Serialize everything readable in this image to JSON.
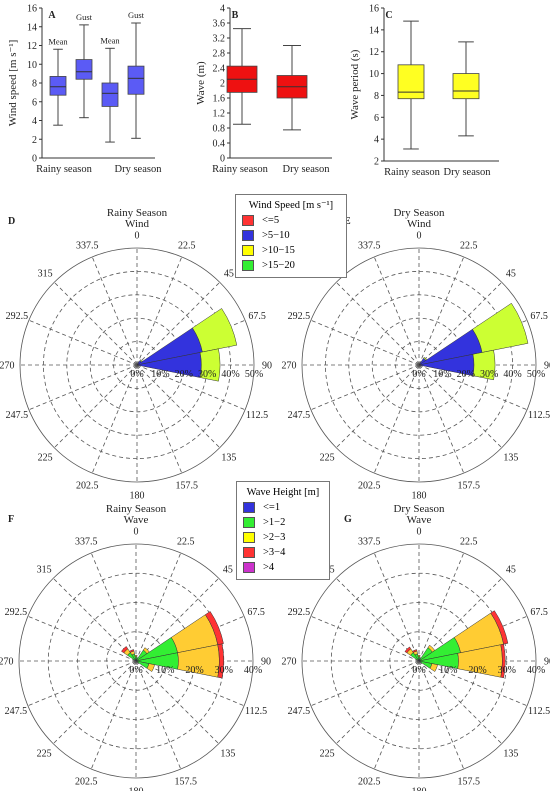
{
  "chart_data": [
    {
      "panel": "A",
      "type": "box",
      "ylabel": "Wind speed [m s⁻¹]",
      "ylim": [
        0,
        16
      ],
      "yticks": [
        0,
        2,
        4,
        6,
        8,
        10,
        12,
        14,
        16
      ],
      "groups": [
        "Rainy season",
        "Dry season"
      ],
      "box_labels": [
        "Mean",
        "Gust",
        "Mean",
        "Gust"
      ],
      "boxes": [
        {
          "group": "Rainy season",
          "label": "Mean",
          "min": 3.5,
          "q1": 6.7,
          "median": 7.6,
          "q3": 8.7,
          "max": 11.6
        },
        {
          "group": "Rainy season",
          "label": "Gust",
          "min": 4.3,
          "q1": 8.4,
          "median": 9.2,
          "q3": 10.5,
          "max": 14.2
        },
        {
          "group": "Dry season",
          "label": "Mean",
          "min": 1.7,
          "q1": 5.5,
          "median": 6.9,
          "q3": 8.0,
          "max": 11.7
        },
        {
          "group": "Dry season",
          "label": "Gust",
          "min": 2.1,
          "q1": 6.8,
          "median": 8.5,
          "q3": 9.8,
          "max": 14.4
        }
      ],
      "color": "#5b5bf5"
    },
    {
      "panel": "B",
      "type": "box",
      "ylabel": "Wave (m)",
      "ylim": [
        0,
        4
      ],
      "yticks": [
        "0",
        "0.4",
        "0.8",
        "1.2",
        "1.6",
        "2",
        "2.4",
        "2.8",
        "3.2",
        "3.6",
        "4"
      ],
      "groups": [
        "Rainy season",
        "Dry season"
      ],
      "boxes": [
        {
          "group": "Rainy season",
          "min": 0.9,
          "q1": 1.75,
          "median": 2.1,
          "q3": 2.45,
          "max": 3.45
        },
        {
          "group": "Dry season",
          "min": 0.75,
          "q1": 1.6,
          "median": 1.9,
          "q3": 2.2,
          "max": 3.0
        }
      ],
      "color": "#ee1111"
    },
    {
      "panel": "C",
      "type": "box",
      "ylabel": "Wave period (s)",
      "ylim": [
        2,
        16
      ],
      "yticks": [
        2,
        4,
        6,
        8,
        10,
        12,
        14,
        16
      ],
      "groups": [
        "Rainy season",
        "Dry season"
      ],
      "boxes": [
        {
          "group": "Rainy season",
          "min": 3.1,
          "q1": 7.7,
          "median": 8.3,
          "q3": 10.8,
          "max": 14.8
        },
        {
          "group": "Dry season",
          "min": 4.3,
          "q1": 7.7,
          "median": 8.4,
          "q3": 10.0,
          "max": 12.9
        }
      ],
      "color": "#ffff22"
    },
    {
      "panel": "D",
      "type": "rose",
      "title": [
        "Rainy Season",
        "Wind"
      ],
      "rmax": 50,
      "radial_labels": [
        "0%",
        "10%",
        "20%",
        "30%",
        "40%",
        "50%"
      ],
      "sectors": [
        {
          "dir": 45,
          "stack": [
            0.3,
            2.0,
            0.5,
            0
          ]
        },
        {
          "dir": 67.5,
          "stack": [
            0.5,
            28,
            15,
            0
          ]
        },
        {
          "dir": 90,
          "stack": [
            0.5,
            27,
            8,
            0
          ]
        }
      ]
    },
    {
      "panel": "E",
      "type": "rose",
      "title": [
        "Dry Season",
        "Wind"
      ],
      "rmax": 50,
      "radial_labels": [
        "0%",
        "10%",
        "20%",
        "30%",
        "40%",
        "50%"
      ],
      "sectors": [
        {
          "dir": 45,
          "stack": [
            0.5,
            3,
            0.5,
            0
          ]
        },
        {
          "dir": 67.5,
          "stack": [
            0.5,
            27,
            20,
            0
          ]
        },
        {
          "dir": 90,
          "stack": [
            0.5,
            23,
            9,
            0
          ]
        }
      ]
    },
    {
      "panel": "F",
      "type": "rose",
      "title": [
        "Rainy Season",
        "Wave"
      ],
      "rmax": 40,
      "radial_labels": [
        "0%",
        "10%",
        "20%",
        "30%",
        "40%"
      ],
      "sectors": [
        {
          "dir": 315,
          "stack": [
            0.5,
            3,
            1.5,
            1.0,
            0
          ]
        },
        {
          "dir": 337.5,
          "stack": [
            0.5,
            2,
            1,
            0.5,
            0
          ]
        },
        {
          "dir": 0,
          "stack": [
            0.5,
            1,
            0.5,
            0,
            0
          ]
        },
        {
          "dir": 45,
          "stack": [
            0.5,
            4,
            1,
            0,
            0
          ]
        },
        {
          "dir": 67.5,
          "stack": [
            0.5,
            14,
            14,
            2,
            0
          ]
        },
        {
          "dir": 90,
          "stack": [
            0.5,
            14,
            14,
            1.5,
            0
          ]
        },
        {
          "dir": 112.5,
          "stack": [
            0.5,
            4,
            2,
            0,
            0
          ]
        }
      ]
    },
    {
      "panel": "G",
      "type": "rose",
      "title": [
        "Dry Season",
        "Wave"
      ],
      "rmax": 40,
      "radial_labels": [
        "0%",
        "10%",
        "20%",
        "30%",
        "40%"
      ],
      "sectors": [
        {
          "dir": 315,
          "stack": [
            0.5,
            3,
            1.5,
            0.8,
            0
          ]
        },
        {
          "dir": 337.5,
          "stack": [
            0.5,
            2,
            1,
            0.5,
            0
          ]
        },
        {
          "dir": 0,
          "stack": [
            0.5,
            1,
            0.5,
            0,
            0
          ]
        },
        {
          "dir": 45,
          "stack": [
            0.5,
            5,
            1,
            0,
            0
          ]
        },
        {
          "dir": 67.5,
          "stack": [
            0.5,
            14,
            15,
            1.5,
            0
          ]
        },
        {
          "dir": 90,
          "stack": [
            0.5,
            13,
            15,
            1,
            0
          ]
        },
        {
          "dir": 112.5,
          "stack": [
            0.5,
            4,
            2,
            0,
            0
          ]
        }
      ]
    }
  ],
  "direction_labels": [
    "0",
    "22.5",
    "45",
    "67.5",
    "90",
    "112.5",
    "135",
    "157.5",
    "180",
    "202.5",
    "225",
    "247.5",
    "270",
    "292.5",
    "315",
    "337.5"
  ],
  "panel_letters": [
    "A",
    "B",
    "C",
    "D",
    "E",
    "F",
    "G"
  ],
  "wind_legend": {
    "title": "Wind Speed [m s⁻¹]",
    "items": [
      {
        "label": "<=5",
        "color": "#ff3333"
      },
      {
        "label": ">5−10",
        "color": "#3333dd"
      },
      {
        "label": ">10−15",
        "color": "#ffff00"
      },
      {
        "label": ">15−20",
        "color": "#33ee33"
      }
    ]
  },
  "wave_legend": {
    "title": "Wave Height [m]",
    "items": [
      {
        "label": "<=1",
        "color": "#3333dd"
      },
      {
        "label": ">1−2",
        "color": "#33ee33"
      },
      {
        "label": ">2−3",
        "color": "#ffff00"
      },
      {
        "label": ">3−4",
        "color": "#ff3333"
      },
      {
        "label": ">4",
        "color": "#cc33cc"
      }
    ]
  },
  "wind_rose_colors": [
    "#ff3333",
    "#3333dd",
    "#ccff33",
    "#33ee33"
  ],
  "wave_rose_colors": [
    "#3333dd",
    "#33ee33",
    "#ffcc33",
    "#ff3333",
    "#cc33cc"
  ]
}
